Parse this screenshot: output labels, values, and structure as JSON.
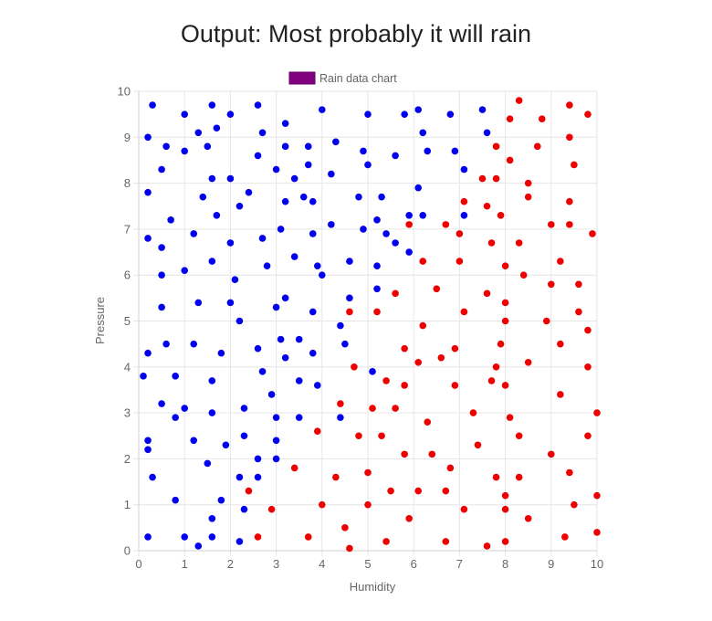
{
  "chart_data": {
    "type": "scatter",
    "title": "Output: Most probably it will rain",
    "xlabel": "Humidity",
    "ylabel": "Pressure",
    "xlim": [
      0,
      10
    ],
    "ylim": [
      0,
      10
    ],
    "x_ticks": [
      "0",
      "1",
      "2",
      "3",
      "4",
      "5",
      "6",
      "7",
      "8",
      "9",
      "10"
    ],
    "y_ticks": [
      "0",
      "1",
      "2",
      "3",
      "4",
      "5",
      "6",
      "7",
      "8",
      "9",
      "10"
    ],
    "grid": true,
    "legend": {
      "label": "Rain data chart",
      "color": "#800080",
      "position": "top"
    },
    "series": [
      {
        "color": "#0000ee",
        "points": [
          [
            0.3,
            9.7
          ],
          [
            0.2,
            9.0
          ],
          [
            0.6,
            8.8
          ],
          [
            0.5,
            8.3
          ],
          [
            0.2,
            7.8
          ],
          [
            0.7,
            7.2
          ],
          [
            0.2,
            6.8
          ],
          [
            0.5,
            6.6
          ],
          [
            0.5,
            6.0
          ],
          [
            1.0,
            6.1
          ],
          [
            0.5,
            5.3
          ],
          [
            0.2,
            4.3
          ],
          [
            0.6,
            4.5
          ],
          [
            0.1,
            3.8
          ],
          [
            0.8,
            3.8
          ],
          [
            0.5,
            3.2
          ],
          [
            0.8,
            2.9
          ],
          [
            0.2,
            2.4
          ],
          [
            0.2,
            2.2
          ],
          [
            0.3,
            1.6
          ],
          [
            0.8,
            1.1
          ],
          [
            0.2,
            0.3
          ],
          [
            1.0,
            9.5
          ],
          [
            1.3,
            9.1
          ],
          [
            1.6,
            9.7
          ],
          [
            1.7,
            9.2
          ],
          [
            1.0,
            8.7
          ],
          [
            1.5,
            8.8
          ],
          [
            1.6,
            8.1
          ],
          [
            1.4,
            7.7
          ],
          [
            1.7,
            7.3
          ],
          [
            1.2,
            6.9
          ],
          [
            1.6,
            6.3
          ],
          [
            1.3,
            5.4
          ],
          [
            1.2,
            4.5
          ],
          [
            1.8,
            4.3
          ],
          [
            1.6,
            3.7
          ],
          [
            1.0,
            3.1
          ],
          [
            1.6,
            3.0
          ],
          [
            1.2,
            2.4
          ],
          [
            1.9,
            2.3
          ],
          [
            1.5,
            1.9
          ],
          [
            1.8,
            1.1
          ],
          [
            1.6,
            0.7
          ],
          [
            1.0,
            0.3
          ],
          [
            1.3,
            0.1
          ],
          [
            1.6,
            0.3
          ],
          [
            2.0,
            9.5
          ],
          [
            2.6,
            9.7
          ],
          [
            2.7,
            9.1
          ],
          [
            2.6,
            8.6
          ],
          [
            2.0,
            8.1
          ],
          [
            2.4,
            7.8
          ],
          [
            2.2,
            7.5
          ],
          [
            2.7,
            6.8
          ],
          [
            2.0,
            6.7
          ],
          [
            2.8,
            6.2
          ],
          [
            2.1,
            5.9
          ],
          [
            2.0,
            5.4
          ],
          [
            2.2,
            5.0
          ],
          [
            2.6,
            4.4
          ],
          [
            2.7,
            3.9
          ],
          [
            2.3,
            3.1
          ],
          [
            2.3,
            2.5
          ],
          [
            2.6,
            2.0
          ],
          [
            2.2,
            1.6
          ],
          [
            2.6,
            1.6
          ],
          [
            2.3,
            0.9
          ],
          [
            2.2,
            0.2
          ],
          [
            3.2,
            9.3
          ],
          [
            3.0,
            8.3
          ],
          [
            3.2,
            8.8
          ],
          [
            3.4,
            8.1
          ],
          [
            3.7,
            8.8
          ],
          [
            3.7,
            8.4
          ],
          [
            3.2,
            7.6
          ],
          [
            3.6,
            7.7
          ],
          [
            3.8,
            7.6
          ],
          [
            3.1,
            7.0
          ],
          [
            3.8,
            6.9
          ],
          [
            3.4,
            6.4
          ],
          [
            3.9,
            6.2
          ],
          [
            3.2,
            5.5
          ],
          [
            3.0,
            5.3
          ],
          [
            3.8,
            5.2
          ],
          [
            3.1,
            4.6
          ],
          [
            3.2,
            4.2
          ],
          [
            3.5,
            4.6
          ],
          [
            3.8,
            4.3
          ],
          [
            3.5,
            3.7
          ],
          [
            3.0,
            2.9
          ],
          [
            3.5,
            2.9
          ],
          [
            3.0,
            2.4
          ],
          [
            3.0,
            2.0
          ],
          [
            3.9,
            3.6
          ],
          [
            2.9,
            3.4
          ],
          [
            4.0,
            9.6
          ],
          [
            4.3,
            8.9
          ],
          [
            4.2,
            8.2
          ],
          [
            4.2,
            7.1
          ],
          [
            4.0,
            6.0
          ],
          [
            4.6,
            6.3
          ],
          [
            4.6,
            5.5
          ],
          [
            4.4,
            4.9
          ],
          [
            4.5,
            4.5
          ],
          [
            4.4,
            2.9
          ],
          [
            4.8,
            7.7
          ],
          [
            4.9,
            7.0
          ],
          [
            5.0,
            9.5
          ],
          [
            4.9,
            8.7
          ],
          [
            5.0,
            8.4
          ],
          [
            5.3,
            7.7
          ],
          [
            5.2,
            7.2
          ],
          [
            5.6,
            8.6
          ],
          [
            5.4,
            6.9
          ],
          [
            5.6,
            6.7
          ],
          [
            5.2,
            6.2
          ],
          [
            5.2,
            5.7
          ],
          [
            5.1,
            3.9
          ],
          [
            5.8,
            9.5
          ],
          [
            6.1,
            9.6
          ],
          [
            6.2,
            9.1
          ],
          [
            6.3,
            8.7
          ],
          [
            6.1,
            7.9
          ],
          [
            5.9,
            7.3
          ],
          [
            6.2,
            7.3
          ],
          [
            5.9,
            6.5
          ],
          [
            6.8,
            9.5
          ],
          [
            6.9,
            8.7
          ],
          [
            7.1,
            8.3
          ],
          [
            7.1,
            7.3
          ],
          [
            7.5,
            9.6
          ],
          [
            7.6,
            9.1
          ]
        ]
      },
      {
        "color": "#ee0000",
        "points": [
          [
            8.3,
            9.8
          ],
          [
            8.1,
            9.4
          ],
          [
            8.8,
            9.4
          ],
          [
            9.4,
            9.7
          ],
          [
            9.8,
            9.5
          ],
          [
            8.7,
            8.8
          ],
          [
            9.4,
            9.0
          ],
          [
            7.8,
            8.8
          ],
          [
            8.1,
            8.5
          ],
          [
            9.5,
            8.4
          ],
          [
            7.5,
            8.1
          ],
          [
            7.8,
            8.1
          ],
          [
            8.5,
            8.0
          ],
          [
            8.5,
            7.7
          ],
          [
            9.4,
            7.6
          ],
          [
            7.1,
            7.6
          ],
          [
            7.6,
            7.5
          ],
          [
            7.9,
            7.3
          ],
          [
            9.0,
            7.1
          ],
          [
            9.4,
            7.1
          ],
          [
            9.9,
            6.9
          ],
          [
            6.7,
            7.1
          ],
          [
            7.0,
            6.9
          ],
          [
            7.7,
            6.7
          ],
          [
            8.3,
            6.7
          ],
          [
            5.9,
            7.1
          ],
          [
            7.0,
            6.3
          ],
          [
            8.0,
            6.2
          ],
          [
            8.4,
            6.0
          ],
          [
            9.2,
            6.3
          ],
          [
            9.0,
            5.8
          ],
          [
            9.6,
            5.8
          ],
          [
            6.2,
            6.3
          ],
          [
            6.5,
            5.7
          ],
          [
            5.6,
            5.6
          ],
          [
            7.6,
            5.6
          ],
          [
            8.0,
            5.4
          ],
          [
            7.1,
            5.2
          ],
          [
            9.6,
            5.2
          ],
          [
            9.8,
            4.8
          ],
          [
            8.0,
            5.0
          ],
          [
            8.9,
            5.0
          ],
          [
            6.2,
            4.9
          ],
          [
            4.6,
            5.2
          ],
          [
            5.2,
            5.2
          ],
          [
            5.8,
            4.4
          ],
          [
            6.9,
            4.4
          ],
          [
            7.9,
            4.5
          ],
          [
            9.2,
            4.5
          ],
          [
            6.6,
            4.2
          ],
          [
            6.1,
            4.1
          ],
          [
            4.7,
            4.0
          ],
          [
            8.5,
            4.1
          ],
          [
            7.8,
            4.0
          ],
          [
            9.8,
            4.0
          ],
          [
            5.4,
            3.7
          ],
          [
            5.8,
            3.6
          ],
          [
            6.9,
            3.6
          ],
          [
            7.7,
            3.7
          ],
          [
            8.0,
            3.6
          ],
          [
            4.4,
            3.2
          ],
          [
            5.1,
            3.1
          ],
          [
            5.6,
            3.1
          ],
          [
            7.3,
            3.0
          ],
          [
            8.1,
            2.9
          ],
          [
            9.2,
            3.4
          ],
          [
            10.0,
            3.0
          ],
          [
            6.3,
            2.8
          ],
          [
            3.9,
            2.6
          ],
          [
            4.8,
            2.5
          ],
          [
            5.3,
            2.5
          ],
          [
            8.3,
            2.5
          ],
          [
            9.8,
            2.5
          ],
          [
            5.8,
            2.1
          ],
          [
            6.4,
            2.1
          ],
          [
            7.4,
            2.3
          ],
          [
            9.0,
            2.1
          ],
          [
            3.4,
            1.8
          ],
          [
            4.3,
            1.6
          ],
          [
            5.0,
            1.7
          ],
          [
            6.8,
            1.8
          ],
          [
            7.8,
            1.6
          ],
          [
            8.3,
            1.6
          ],
          [
            9.4,
            1.7
          ],
          [
            2.4,
            1.3
          ],
          [
            5.5,
            1.3
          ],
          [
            6.1,
            1.3
          ],
          [
            6.7,
            1.3
          ],
          [
            8.0,
            1.2
          ],
          [
            10.0,
            1.2
          ],
          [
            4.0,
            1.0
          ],
          [
            5.0,
            1.0
          ],
          [
            2.9,
            0.9
          ],
          [
            5.9,
            0.7
          ],
          [
            7.1,
            0.9
          ],
          [
            8.0,
            0.9
          ],
          [
            9.5,
            1.0
          ],
          [
            8.5,
            0.7
          ],
          [
            4.5,
            0.5
          ],
          [
            3.7,
            0.3
          ],
          [
            2.6,
            0.3
          ],
          [
            5.4,
            0.2
          ],
          [
            6.7,
            0.2
          ],
          [
            8.0,
            0.2
          ],
          [
            9.3,
            0.3
          ],
          [
            10.0,
            0.4
          ],
          [
            4.6,
            0.05
          ],
          [
            7.6,
            0.1
          ]
        ]
      }
    ]
  }
}
